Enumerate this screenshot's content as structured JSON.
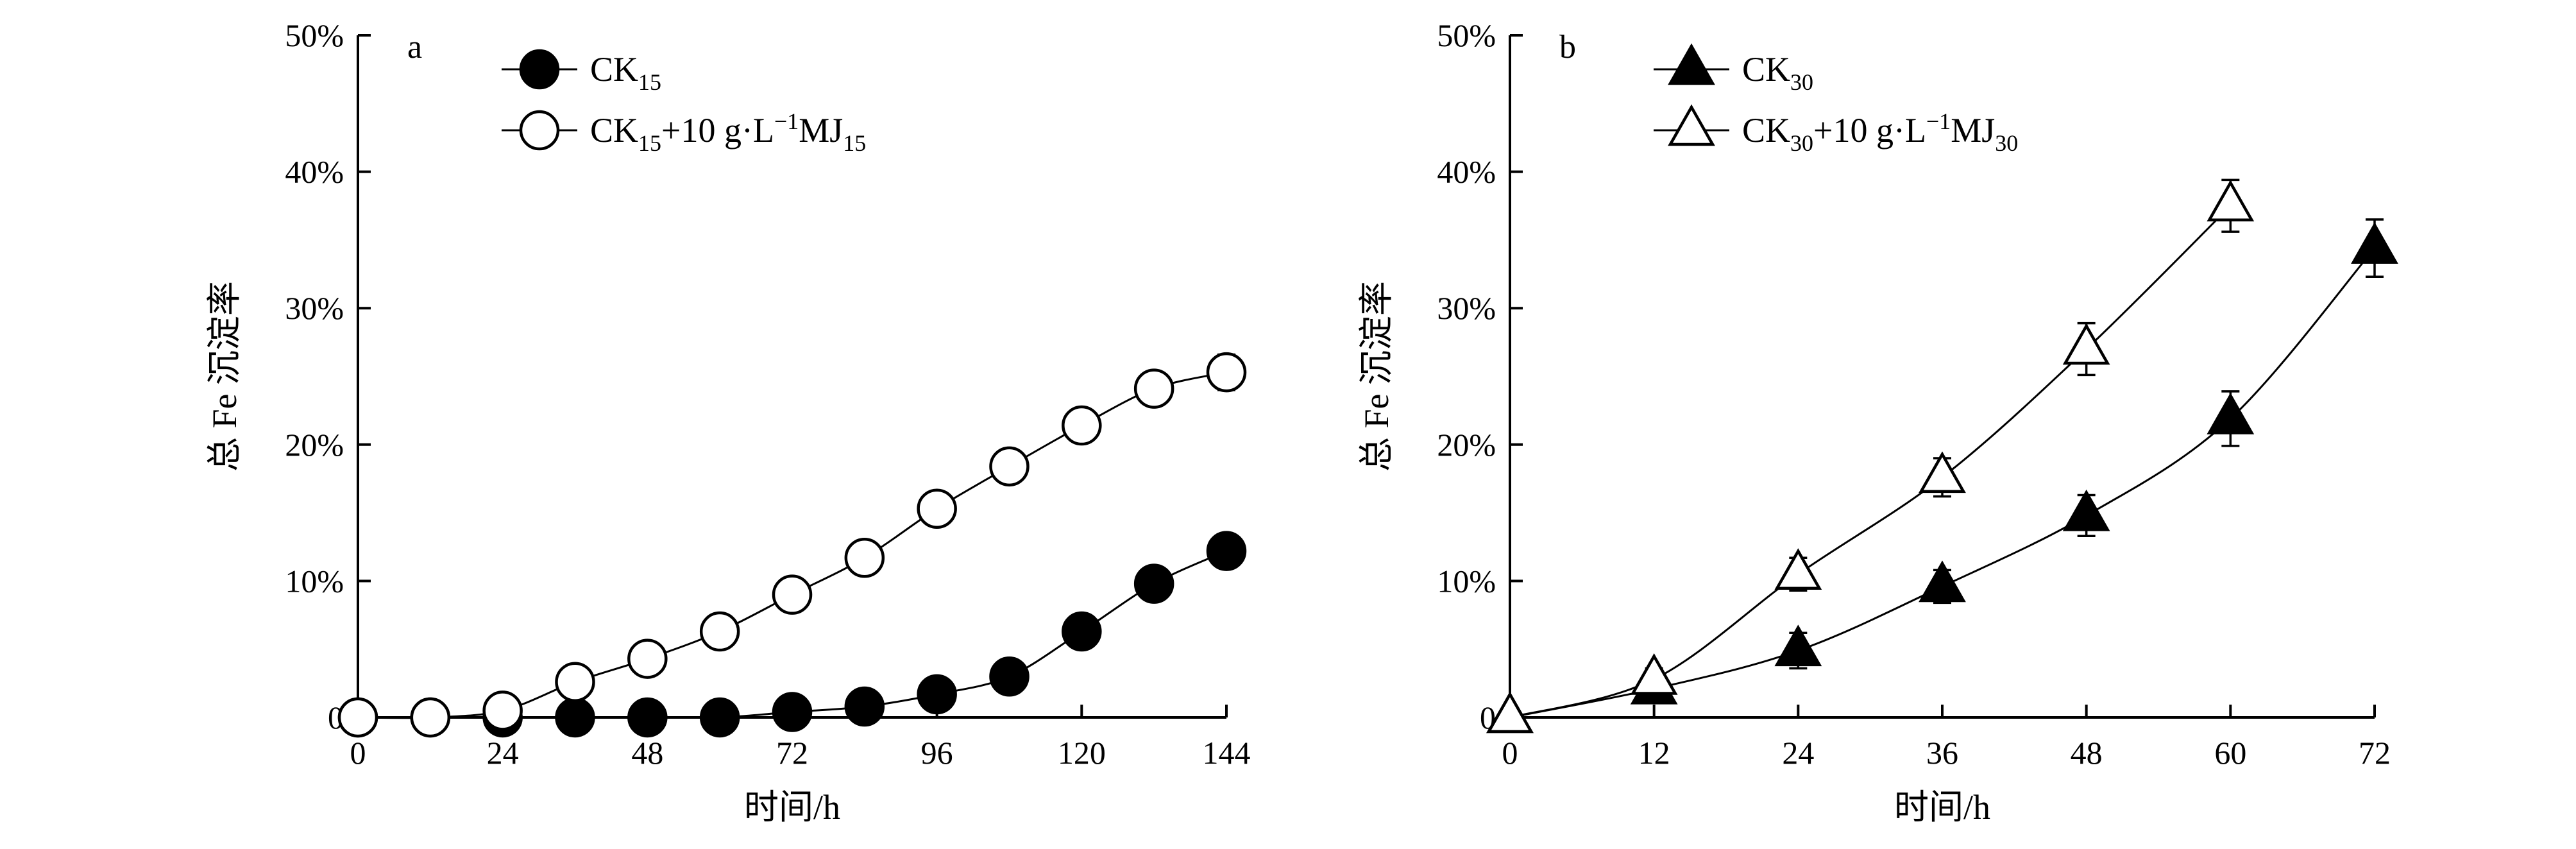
{
  "chart_data": [
    {
      "panel_label": "a",
      "type": "line",
      "xlabel": "时间/h",
      "ylabel": "总 Fe 沉淀率",
      "xlim": [
        0,
        144
      ],
      "ylim": [
        0,
        50
      ],
      "xticks": [
        "0",
        "24",
        "48",
        "72",
        "96",
        "120",
        "144"
      ],
      "xtick_values": [
        0,
        24,
        48,
        72,
        96,
        120,
        144
      ],
      "yticks": [
        "0",
        "10%",
        "20%",
        "30%",
        "40%",
        "50%"
      ],
      "ytick_values": [
        0,
        10,
        20,
        30,
        40,
        50
      ],
      "legend_position": "top-left",
      "series": [
        {
          "name": "CK15",
          "name_parts": [
            {
              "t": "CK"
            },
            {
              "t": "15",
              "sub": true
            }
          ],
          "marker": "circle-filled",
          "x": [
            0,
            12,
            24,
            36,
            48,
            60,
            72,
            84,
            96,
            108,
            120,
            132,
            144
          ],
          "values": [
            0,
            0,
            0,
            0,
            0,
            0,
            0.4,
            0.8,
            1.7,
            3.0,
            6.3,
            9.8,
            12.2
          ],
          "errors": [
            0,
            0,
            0,
            0,
            0,
            0,
            0.3,
            0.3,
            0.4,
            0.4,
            0.5,
            0.6,
            1.0
          ]
        },
        {
          "name": "CK15+10 g·L−1MJ15",
          "name_parts": [
            {
              "t": "CK"
            },
            {
              "t": "15",
              "sub": true
            },
            {
              "t": "+10 g·L"
            },
            {
              "t": "−1",
              "sup": true
            },
            {
              "t": "MJ"
            },
            {
              "t": "15",
              "sub": true
            }
          ],
          "marker": "circle-open",
          "x": [
            0,
            12,
            24,
            36,
            48,
            60,
            72,
            84,
            96,
            108,
            120,
            132,
            144
          ],
          "values": [
            0,
            0,
            0.5,
            2.6,
            4.3,
            6.3,
            9.0,
            11.7,
            15.3,
            18.4,
            21.4,
            24.1,
            25.3
          ],
          "errors": [
            0,
            0,
            0.4,
            0.5,
            0.5,
            0.6,
            0.6,
            0.7,
            0.8,
            0.8,
            0.9,
            1.1,
            1.3
          ]
        }
      ]
    },
    {
      "panel_label": "b",
      "type": "line",
      "xlabel": "时间/h",
      "ylabel": "总 Fe 沉淀率",
      "xlim": [
        0,
        72
      ],
      "ylim": [
        0,
        50
      ],
      "xticks": [
        "0",
        "12",
        "24",
        "36",
        "48",
        "60",
        "72"
      ],
      "xtick_values": [
        0,
        12,
        24,
        36,
        48,
        60,
        72
      ],
      "yticks": [
        "0",
        "10%",
        "20%",
        "30%",
        "40%",
        "50%"
      ],
      "ytick_values": [
        0,
        10,
        20,
        30,
        40,
        50
      ],
      "legend_position": "top-left",
      "series": [
        {
          "name": "CK30",
          "name_parts": [
            {
              "t": "CK"
            },
            {
              "t": "30",
              "sub": true
            }
          ],
          "marker": "triangle-filled",
          "x": [
            0,
            12,
            24,
            36,
            48,
            60,
            72
          ],
          "values": [
            0,
            2.1,
            4.9,
            9.6,
            14.8,
            21.9,
            34.4
          ],
          "errors": [
            0,
            0.8,
            1.3,
            1.2,
            1.5,
            2.0,
            2.1
          ]
        },
        {
          "name": "CK30+10 g·L−1MJ30",
          "name_parts": [
            {
              "t": "CK"
            },
            {
              "t": "30",
              "sub": true
            },
            {
              "t": "+10 g·L"
            },
            {
              "t": "−1",
              "sup": true
            },
            {
              "t": "MJ"
            },
            {
              "t": "30",
              "sub": true
            }
          ],
          "marker": "triangle-open",
          "x": [
            0,
            12,
            24,
            36,
            48,
            60
          ],
          "values": [
            0,
            2.8,
            10.5,
            17.6,
            27.0,
            37.5
          ],
          "errors": [
            0,
            0.8,
            1.2,
            1.4,
            1.9,
            1.9
          ]
        }
      ]
    }
  ]
}
